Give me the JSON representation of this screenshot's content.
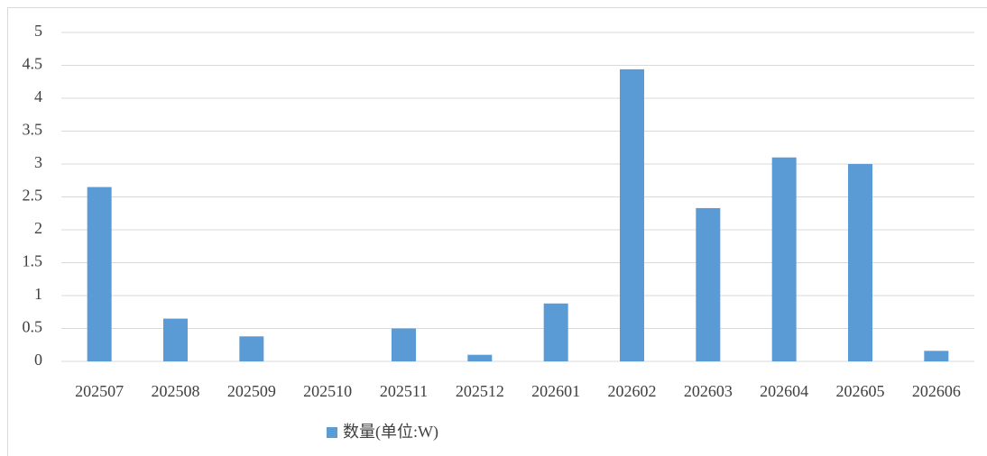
{
  "chart_data": {
    "type": "bar",
    "categories": [
      "202507",
      "202508",
      "202509",
      "202510",
      "202511",
      "202512",
      "202601",
      "202602",
      "202603",
      "202604",
      "202605",
      "202606"
    ],
    "series": [
      {
        "name": "数量(单位:W)",
        "color": "#5b9bd5",
        "values": [
          2.65,
          0.65,
          0.38,
          0,
          0.5,
          0.1,
          0.88,
          4.44,
          2.33,
          3.1,
          3.0,
          0.16
        ]
      }
    ],
    "ylim": [
      0,
      5
    ],
    "yticks": [
      0,
      0.5,
      1,
      1.5,
      2,
      2.5,
      3,
      3.5,
      4,
      4.5,
      5
    ],
    "grid": true,
    "legend": "bottom"
  }
}
